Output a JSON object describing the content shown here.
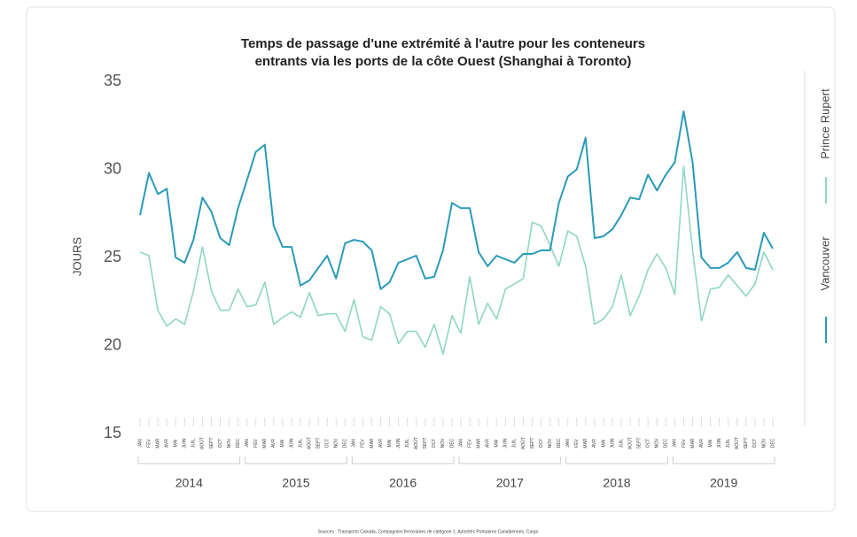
{
  "chart_data": {
    "type": "line",
    "title": [
      "Temps de passage d'une extrémité à l'autre pour les conteneurs",
      "entrants via les ports de la côte Ouest (Shanghai à Toronto)"
    ],
    "ylabel": "JOURS",
    "source": "Sources : Transports Canada, Compagnies ferroviaires de catégorie 1, Autorités Portuaires Canadiennes, Cargo",
    "years": [
      "2014",
      "2015",
      "2016",
      "2017",
      "2018",
      "2019"
    ],
    "categories": [
      "JAN",
      "FÉV",
      "MAR",
      "AVR",
      "MAI",
      "JUIN",
      "JUIL",
      "AOÛT",
      "SEPT",
      "OCT",
      "NOV",
      "DÉC",
      "JAN",
      "FÉV",
      "MAR",
      "AVR",
      "MAI",
      "JUIN",
      "JUIL",
      "AOÛT",
      "SEPT",
      "OCT",
      "NOV",
      "DÉC",
      "JAN",
      "FÉV",
      "MAR",
      "AVR",
      "MAI",
      "JUIN",
      "JUIL",
      "AOÛT",
      "SEPT",
      "OCT",
      "NOV",
      "DÉC",
      "JAN",
      "FÉV",
      "MAR",
      "AVR",
      "MAI",
      "JUIN",
      "JUIL",
      "AOÛT",
      "SEPT",
      "OCT",
      "NOV",
      "DÉC",
      "JAN",
      "FÉV",
      "MAR",
      "AVR",
      "MAI",
      "JUIN",
      "JUIL",
      "AOÛT",
      "SEPT",
      "OCT",
      "NOV",
      "DÉC",
      "JAN",
      "FÉV",
      "MAR",
      "AVR",
      "MAI",
      "JUIN",
      "JUIL",
      "AOÛT",
      "SEPT",
      "OCT",
      "NOV",
      "DÉC"
    ],
    "series": [
      {
        "name": "Prince Rupert",
        "color": "#8fd6c4",
        "values": [
          25.3,
          25.1,
          22.0,
          21.1,
          21.5,
          21.2,
          23.1,
          25.6,
          23.1,
          22.0,
          22.0,
          23.2,
          22.2,
          22.3,
          23.6,
          21.2,
          21.6,
          21.9,
          21.6,
          23.0,
          21.7,
          21.8,
          21.8,
          20.8,
          22.6,
          20.5,
          20.3,
          22.2,
          21.8,
          20.1,
          20.8,
          20.8,
          19.9,
          21.2,
          19.5,
          21.7,
          20.7,
          23.9,
          21.2,
          22.4,
          21.5,
          23.2,
          23.5,
          23.8,
          27.0,
          26.8,
          25.7,
          24.5,
          26.5,
          26.2,
          24.5,
          21.2,
          21.5,
          22.2,
          24.0,
          21.7,
          22.8,
          24.3,
          25.2,
          24.4,
          22.9,
          30.2,
          25.4,
          21.4,
          23.2,
          23.3,
          24.0,
          23.4,
          22.8,
          23.5,
          25.3,
          24.3
        ]
      },
      {
        "name": "Vancouver",
        "color": "#2a9ab8",
        "values": [
          27.4,
          29.8,
          28.6,
          28.9,
          25.0,
          24.7,
          26.0,
          28.4,
          27.6,
          26.1,
          25.7,
          27.8,
          29.4,
          31.0,
          31.4,
          26.8,
          25.6,
          25.6,
          23.4,
          23.7,
          24.4,
          25.1,
          23.8,
          25.8,
          26.0,
          25.9,
          25.4,
          23.2,
          23.6,
          24.7,
          24.9,
          25.1,
          23.8,
          23.9,
          25.4,
          28.1,
          27.8,
          27.8,
          25.3,
          24.5,
          25.1,
          24.9,
          24.7,
          25.2,
          25.2,
          25.4,
          25.4,
          28.1,
          29.6,
          30.0,
          31.8,
          26.1,
          26.2,
          26.6,
          27.4,
          28.4,
          28.3,
          29.7,
          28.8,
          29.7,
          30.4,
          33.3,
          30.4,
          25.0,
          24.4,
          24.4,
          24.7,
          25.3,
          24.4,
          24.3,
          26.4,
          25.5
        ]
      }
    ],
    "ylim": [
      15,
      35
    ],
    "yticks": [
      15,
      20,
      25,
      30,
      35
    ],
    "grid": false,
    "legend": "right"
  }
}
